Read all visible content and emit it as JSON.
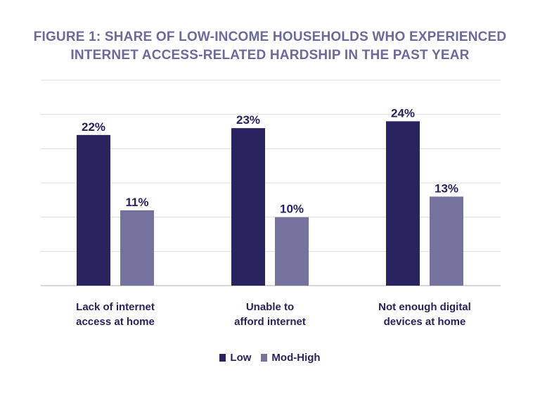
{
  "chart_data": {
    "type": "bar",
    "title_lines": [
      "FIGURE 1: SHARE OF LOW-INCOME HOUSEHOLDS WHO EXPERIENCED",
      "INTERNET ACCESS-RELATED HARDSHIP IN THE PAST YEAR"
    ],
    "categories": [
      [
        "Lack of internet",
        "access at home"
      ],
      [
        "Unable to",
        "afford internet"
      ],
      [
        "Not enough digital",
        "devices at home"
      ]
    ],
    "series": [
      {
        "name": "Low",
        "color": "#29245f",
        "values": [
          22,
          23,
          24
        ],
        "labels": [
          "22%",
          "23%",
          "24%"
        ]
      },
      {
        "name": "Mod-High",
        "color": "#76729e",
        "values": [
          11,
          10,
          13
        ],
        "labels": [
          "11%",
          "10%",
          "13%"
        ]
      }
    ],
    "ylim": [
      0,
      30
    ],
    "grid": true,
    "legend_position": "bottom-center",
    "axis_color": "#cfcfcf",
    "label_color": "#26235e"
  }
}
